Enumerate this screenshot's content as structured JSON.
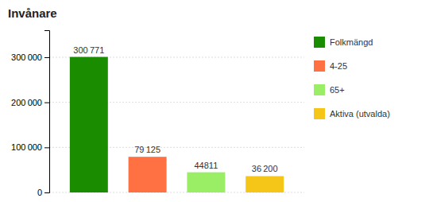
{
  "chart_data": {
    "type": "bar",
    "title": "Invånare",
    "categories": [
      "Folkmängd",
      "4-25",
      "65+",
      "Aktiva (utvalda)"
    ],
    "values": [
      300771,
      79125,
      44811,
      36200
    ],
    "value_labels": [
      "300 771",
      "79 125",
      "44811",
      "36 200"
    ],
    "colors": [
      "#1a8c00",
      "#ff7043",
      "#99ee66",
      "#f5c518"
    ],
    "ylim": [
      0,
      360000
    ],
    "yticks": [
      0,
      {
        "value": 100000,
        "label": "100 000"
      },
      {
        "value": 200000,
        "label": "200 000"
      },
      {
        "value": 300000,
        "label": "300 000"
      }
    ],
    "grid": true,
    "legend": "right",
    "data_labels": true,
    "tick_labels": "y"
  }
}
